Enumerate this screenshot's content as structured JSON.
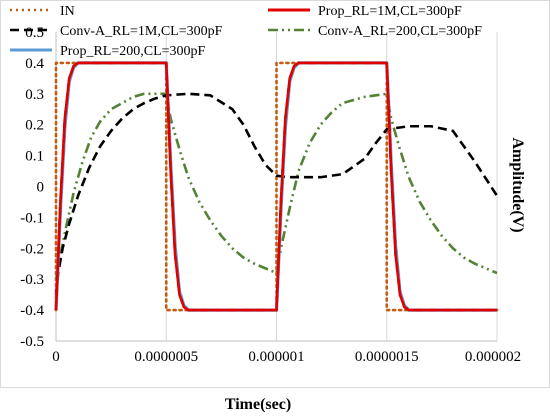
{
  "chart_data": {
    "type": "line",
    "title": "",
    "xlabel": "Time(sec)",
    "ylabel": "Amplitude(V)",
    "xlim": [
      0,
      2e-06
    ],
    "ylim": [
      -0.5,
      0.5
    ],
    "x_ticks": [
      0,
      5e-07,
      1e-06,
      1.5e-06,
      2e-06
    ],
    "x_tick_labels": [
      "0",
      "0.0000005",
      "0.000001",
      "0.0000015",
      "0.000002"
    ],
    "y_ticks": [
      -0.5,
      -0.4,
      -0.3,
      -0.2,
      -0.1,
      0,
      0.1,
      0.2,
      0.3,
      0.4,
      0.5
    ],
    "y_tick_labels": [
      "-0.5",
      "-0.4",
      "-0.3",
      "-0.2",
      "-0.1",
      "0",
      "0.1",
      "0.2",
      "0.3",
      "0.4",
      "0.5"
    ],
    "grid": {
      "vertical": true,
      "horizontal": false
    },
    "legend_position": "top",
    "series": [
      {
        "name": "IN",
        "color": "#C55A11",
        "dash": "dot",
        "x": [
          0,
          0,
          5e-07,
          5e-07,
          1e-06,
          1e-06,
          1.5e-06,
          1.5e-06,
          2e-06
        ],
        "y": [
          -0.4,
          0.4,
          0.4,
          -0.4,
          -0.4,
          0.4,
          0.4,
          -0.4,
          -0.4
        ]
      },
      {
        "name": "Prop_RL=1M,CL=300pF",
        "color": "#E00000",
        "dash": "solid",
        "x": [
          0,
          2e-08,
          4e-08,
          6e-08,
          8e-08,
          1e-07,
          5e-07,
          5.2e-07,
          5.4e-07,
          5.6e-07,
          5.8e-07,
          6e-07,
          1e-06,
          1.02e-06,
          1.04e-06,
          1.06e-06,
          1.08e-06,
          1.1e-06,
          1.5e-06,
          1.52e-06,
          1.54e-06,
          1.56e-06,
          1.58e-06,
          1.6e-06,
          2e-06
        ],
        "y": [
          -0.4,
          -0.05,
          0.22,
          0.35,
          0.39,
          0.4,
          0.4,
          0.05,
          -0.22,
          -0.35,
          -0.39,
          -0.4,
          -0.4,
          -0.05,
          0.22,
          0.35,
          0.39,
          0.4,
          0.4,
          0.05,
          -0.22,
          -0.35,
          -0.39,
          -0.4,
          -0.4
        ]
      },
      {
        "name": "Conv-A_RL=1M,CL=300pF",
        "color": "#000000",
        "dash": "dash",
        "x": [
          0,
          1e-08,
          3e-08,
          6e-08,
          1e-07,
          1.5e-07,
          2e-07,
          2.5e-07,
          3e-07,
          3.5e-07,
          4e-07,
          4.5e-07,
          5e-07,
          6e-07,
          7e-07,
          8e-07,
          8.5e-07,
          9e-07,
          9.5e-07,
          1e-06,
          1.05e-06,
          1.1e-06,
          1.2e-06,
          1.3e-06,
          1.4e-06,
          1.45e-06,
          1.5e-06,
          1.6e-06,
          1.7e-06,
          1.8e-06,
          1.9e-06,
          2e-06
        ],
        "y": [
          -0.35,
          -0.28,
          -0.2,
          -0.12,
          -0.03,
          0.06,
          0.13,
          0.18,
          0.22,
          0.25,
          0.27,
          0.285,
          0.295,
          0.3,
          0.295,
          0.25,
          0.2,
          0.13,
          0.07,
          0.035,
          0.03,
          0.03,
          0.03,
          0.04,
          0.09,
          0.14,
          0.185,
          0.195,
          0.195,
          0.18,
          0.08,
          -0.03
        ]
      },
      {
        "name": "Conv-A_RL=200,CL=300pF",
        "color": "#548235",
        "dash": "dashdotdot",
        "x": [
          0,
          4e-08,
          8e-08,
          1.2e-07,
          1.6e-07,
          2e-07,
          2.5e-07,
          3e-07,
          3.5e-07,
          4e-07,
          5e-07,
          5.2e-07,
          5.6e-07,
          6e-07,
          6.5e-07,
          7e-07,
          7.5e-07,
          8e-07,
          8.5e-07,
          9e-07,
          1e-06,
          1.02e-06,
          1.06e-06,
          1.1e-06,
          1.15e-06,
          1.2e-06,
          1.25e-06,
          1.3e-06,
          1.4e-06,
          1.5e-06,
          1.52e-06,
          1.56e-06,
          1.6e-06,
          1.65e-06,
          1.7e-06,
          1.75e-06,
          1.8e-06,
          1.85e-06,
          1.9e-06,
          2e-06
        ],
        "y": [
          -0.3,
          -0.15,
          -0.02,
          0.08,
          0.16,
          0.21,
          0.25,
          0.27,
          0.29,
          0.3,
          0.3,
          0.22,
          0.12,
          0.03,
          -0.05,
          -0.11,
          -0.16,
          -0.2,
          -0.23,
          -0.25,
          -0.28,
          -0.2,
          -0.07,
          0.05,
          0.14,
          0.2,
          0.24,
          0.27,
          0.29,
          0.3,
          0.22,
          0.12,
          0.03,
          -0.05,
          -0.11,
          -0.16,
          -0.2,
          -0.23,
          -0.25,
          -0.28
        ]
      },
      {
        "name": "Prop_RL=200,CL=300pF",
        "color": "#5B9BD5",
        "dash": "solid",
        "x": [
          0,
          2e-08,
          4e-08,
          6e-08,
          8e-08,
          1e-07,
          5e-07,
          5.2e-07,
          5.4e-07,
          5.6e-07,
          5.8e-07,
          6e-07,
          1e-06,
          1.02e-06,
          1.04e-06,
          1.06e-06,
          1.08e-06,
          1.1e-06,
          1.5e-06,
          1.52e-06,
          1.54e-06,
          1.56e-06,
          1.58e-06,
          1.6e-06,
          2e-06
        ],
        "y": [
          -0.4,
          -0.08,
          0.19,
          0.34,
          0.385,
          0.4,
          0.4,
          0.08,
          -0.19,
          -0.34,
          -0.385,
          -0.4,
          -0.4,
          -0.08,
          0.19,
          0.34,
          0.385,
          0.4,
          0.4,
          0.08,
          -0.19,
          -0.34,
          -0.385,
          -0.4,
          -0.4
        ]
      }
    ]
  }
}
